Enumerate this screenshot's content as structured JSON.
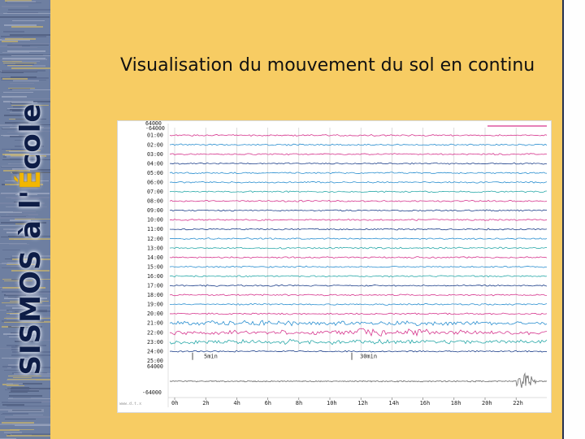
{
  "sidebar": {
    "title_part1": "SISMOS à l'",
    "title_accent": "É",
    "title_part2": "cole"
  },
  "slide": {
    "title": "Visualisation du mouvement du sol en continu"
  },
  "colors": {
    "background": "#f7cc63",
    "band": "#6e7fa1",
    "title_text": "#0e1d46",
    "accent": "#f2b600",
    "trace_pink": "#d6368e",
    "trace_blue": "#2b8fd0",
    "trace_teal": "#2aa9a9",
    "trace_navy": "#1d3f8a",
    "bottom_trace": "#777777"
  },
  "chart_data": {
    "type": "line",
    "top_scale": [
      "64000",
      "-64000"
    ],
    "hour_rows": [
      {
        "label": "01:00",
        "color": "pink"
      },
      {
        "label": "02:00",
        "color": "blue"
      },
      {
        "label": "03:00",
        "color": "pink"
      },
      {
        "label": "04:00",
        "color": "navy"
      },
      {
        "label": "05:00",
        "color": "blue"
      },
      {
        "label": "06:00",
        "color": "blue"
      },
      {
        "label": "07:00",
        "color": "teal"
      },
      {
        "label": "08:00",
        "color": "pink"
      },
      {
        "label": "09:00",
        "color": "navy"
      },
      {
        "label": "10:00",
        "color": "pink"
      },
      {
        "label": "11:00",
        "color": "navy"
      },
      {
        "label": "12:00",
        "color": "blue"
      },
      {
        "label": "13:00",
        "color": "teal"
      },
      {
        "label": "14:00",
        "color": "pink"
      },
      {
        "label": "15:00",
        "color": "blue"
      },
      {
        "label": "16:00",
        "color": "teal"
      },
      {
        "label": "17:00",
        "color": "navy"
      },
      {
        "label": "18:00",
        "color": "pink"
      },
      {
        "label": "19:00",
        "color": "blue"
      },
      {
        "label": "20:00",
        "color": "pink"
      },
      {
        "label": "21:00",
        "color": "blue"
      },
      {
        "label": "22:00",
        "color": "pink"
      },
      {
        "label": "23:00",
        "color": "teal"
      },
      {
        "label": "24:00",
        "color": "navy"
      }
    ],
    "last_row_label": "25:00",
    "scale_markers": [
      "5min",
      "30min"
    ],
    "bottom_scale": [
      "64000",
      "-64000"
    ],
    "bottom_left_label": "www.d.t.x",
    "x_ticks": [
      "0h",
      "2h",
      "4h",
      "6h",
      "8h",
      "10h",
      "12h",
      "14h",
      "16h",
      "18h",
      "20h",
      "22h"
    ]
  }
}
